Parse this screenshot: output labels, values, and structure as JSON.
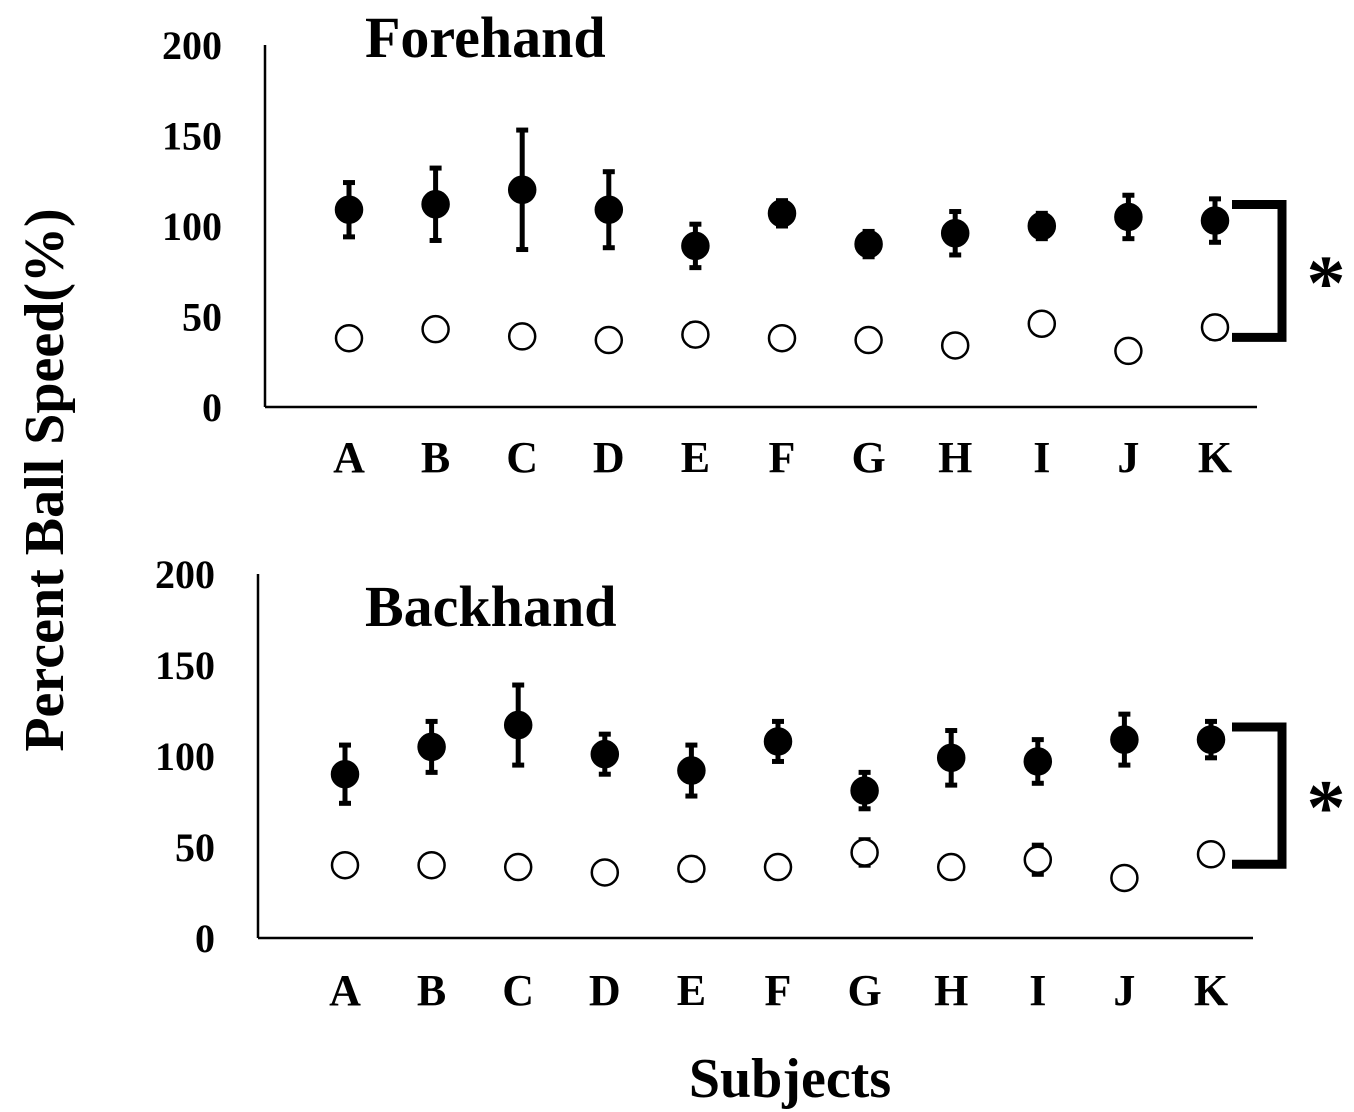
{
  "chart_data": [
    {
      "type": "scatter",
      "title": "Forehand",
      "xlabel": "Subjects",
      "ylabel": "Percent Ball Speed(%)",
      "ylim": [
        0,
        200
      ],
      "yticks": [
        0,
        50,
        100,
        150,
        200
      ],
      "categories": [
        "A",
        "B",
        "C",
        "D",
        "E",
        "F",
        "G",
        "H",
        "I",
        "J",
        "K"
      ],
      "series": [
        {
          "marker": "filled-circle",
          "values": [
            109,
            112,
            120,
            109,
            89,
            107,
            90,
            96,
            100,
            105,
            103
          ],
          "error": [
            15,
            20,
            33,
            21,
            12,
            7,
            7,
            12,
            7,
            12,
            12
          ]
        },
        {
          "marker": "open-circle",
          "values": [
            38,
            43,
            39,
            37,
            40,
            38,
            37,
            34,
            46,
            31,
            44
          ],
          "error": [
            0,
            0,
            0,
            0,
            6,
            0,
            0,
            0,
            5,
            0,
            6
          ]
        }
      ],
      "significance": "*",
      "grid": false,
      "legend": "none"
    },
    {
      "type": "scatter",
      "title": "Backhand",
      "xlabel": "Subjects",
      "ylabel": "Percent Ball Speed(%)",
      "ylim": [
        0,
        200
      ],
      "yticks": [
        0,
        50,
        100,
        150,
        200
      ],
      "categories": [
        "A",
        "B",
        "C",
        "D",
        "E",
        "F",
        "G",
        "H",
        "I",
        "J",
        "K"
      ],
      "series": [
        {
          "marker": "filled-circle",
          "values": [
            90,
            105,
            117,
            101,
            92,
            108,
            81,
            99,
            97,
            109,
            109
          ],
          "error": [
            16,
            14,
            22,
            11,
            14,
            11,
            10,
            15,
            12,
            14,
            10
          ]
        },
        {
          "marker": "open-circle",
          "values": [
            40,
            40,
            39,
            36,
            38,
            39,
            47,
            39,
            43,
            33,
            46
          ],
          "error": [
            5,
            0,
            0,
            0,
            6,
            0,
            7,
            5,
            8,
            0,
            0
          ]
        }
      ],
      "significance": "*",
      "grid": false,
      "legend": "none"
    }
  ],
  "colors": {
    "marker": "#000000",
    "background": "#ffffff"
  }
}
